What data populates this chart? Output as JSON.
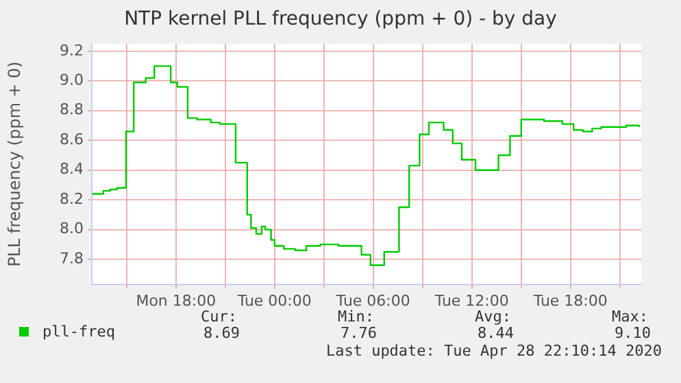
{
  "chart_data": {
    "type": "step",
    "title": "NTP kernel PLL frequency (ppm + 0) - by day",
    "ylabel": "PLL frequency (ppm + 0)",
    "x": [
      "2020-04-27T12:54",
      "2020-04-27T13:35",
      "2020-04-27T14:00",
      "2020-04-27T14:25",
      "2020-04-27T14:58",
      "2020-04-27T15:26",
      "2020-04-27T16:10",
      "2020-04-27T16:41",
      "2020-04-27T17:41",
      "2020-04-27T18:05",
      "2020-04-27T18:43",
      "2020-04-27T19:17",
      "2020-04-27T20:07",
      "2020-04-27T20:40",
      "2020-04-27T21:38",
      "2020-04-27T22:20",
      "2020-04-27T22:34",
      "2020-04-27T22:53",
      "2020-04-27T23:13",
      "2020-04-27T23:26",
      "2020-04-27T23:47",
      "2020-04-28T00:00",
      "2020-04-28T00:34",
      "2020-04-28T01:15",
      "2020-04-28T01:56",
      "2020-04-28T02:47",
      "2020-04-28T03:53",
      "2020-04-28T05:08",
      "2020-04-28T05:17",
      "2020-04-28T05:50",
      "2020-04-28T06:40",
      "2020-04-28T07:34",
      "2020-04-28T08:11",
      "2020-04-28T08:49",
      "2020-04-28T09:23",
      "2020-04-28T10:17",
      "2020-04-28T10:50",
      "2020-04-28T11:23",
      "2020-04-28T12:13",
      "2020-04-28T13:37",
      "2020-04-28T14:19",
      "2020-04-28T15:00",
      "2020-04-28T16:23",
      "2020-04-28T17:30",
      "2020-04-28T18:11",
      "2020-04-28T18:45",
      "2020-04-28T19:19",
      "2020-04-28T19:52",
      "2020-04-28T21:23",
      "2020-04-28T22:10"
    ],
    "series": [
      {
        "name": "pll-freq",
        "color": "#00cc00",
        "values": [
          8.24,
          8.26,
          8.27,
          8.28,
          8.66,
          8.99,
          9.02,
          9.1,
          8.99,
          8.96,
          8.75,
          8.74,
          8.72,
          8.71,
          8.45,
          8.1,
          8.01,
          7.97,
          8.02,
          8.0,
          7.93,
          7.89,
          7.87,
          7.86,
          7.89,
          7.9,
          7.89,
          7.89,
          7.83,
          7.76,
          7.85,
          8.15,
          8.43,
          8.64,
          8.72,
          8.67,
          8.58,
          8.47,
          8.4,
          8.5,
          8.63,
          8.74,
          8.73,
          8.71,
          8.67,
          8.66,
          8.68,
          8.69,
          8.7,
          8.69
        ]
      }
    ],
    "xlim": [
      "2020-04-27T12:53",
      "2020-04-28T22:18"
    ],
    "xticks": [
      {
        "value": "2020-04-27T15:00",
        "label": null
      },
      {
        "value": "2020-04-27T18:00",
        "label": "Mon 18:00"
      },
      {
        "value": "2020-04-27T21:00",
        "label": null
      },
      {
        "value": "2020-04-28T00:00",
        "label": "Tue 00:00"
      },
      {
        "value": "2020-04-28T03:00",
        "label": null
      },
      {
        "value": "2020-04-28T06:00",
        "label": "Tue 06:00"
      },
      {
        "value": "2020-04-28T09:00",
        "label": null
      },
      {
        "value": "2020-04-28T12:00",
        "label": "Tue 12:00"
      },
      {
        "value": "2020-04-28T15:00",
        "label": null
      },
      {
        "value": "2020-04-28T18:00",
        "label": "Tue 18:00"
      },
      {
        "value": "2020-04-28T21:00",
        "label": null
      }
    ],
    "ylim": [
      7.63,
      9.25
    ],
    "yticks": [
      7.8,
      {
        "value": 8,
        "label": "8.0"
      },
      8.2,
      8.4,
      8.6,
      8.8,
      {
        "value": 9,
        "label": "9.0"
      },
      9.2
    ],
    "grid": true,
    "legend": "bottom left",
    "marker": "none",
    "line_style": "solid",
    "annotations": [
      "Cur:",
      "Min:",
      "Avg:",
      "Max:",
      "8.69",
      "7.76",
      "8.44",
      "9.10",
      "Last update: Tue Apr 28 22:10:14 2020"
    ]
  }
}
